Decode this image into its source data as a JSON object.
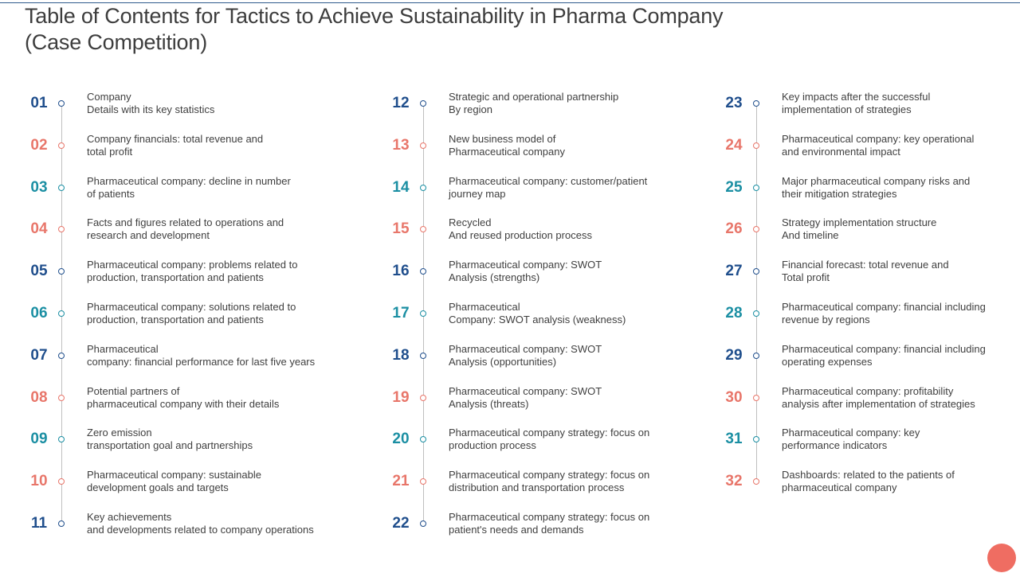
{
  "title_line1": "Table of Contents for Tactics to Achieve Sustainability in Pharma Company",
  "title_line2": "(Case Competition)",
  "colors": {
    "navy": "#1f4e8c",
    "salmon": "#e8766a",
    "teal": "#1b8fa3",
    "accent_circle": "#ef6d62",
    "top_rule": "#2e5a8c"
  },
  "columns": [
    {
      "items": [
        {
          "num": "01",
          "color": "navy",
          "line1": "Company",
          "line2": "Details with its key statistics"
        },
        {
          "num": "02",
          "color": "salmon",
          "line1": "Company financials: total revenue  and",
          "line2": "total profit"
        },
        {
          "num": "03",
          "color": "teal",
          "line1": "Pharmaceutical company: decline in number",
          "line2": "of patients"
        },
        {
          "num": "04",
          "color": "salmon",
          "line1": "Facts and figures related to operations and",
          "line2": "research and development"
        },
        {
          "num": "05",
          "color": "navy",
          "line1": "Pharmaceutical company: problems related to",
          "line2": "production, transportation and patients"
        },
        {
          "num": "06",
          "color": "teal",
          "line1": "Pharmaceutical company: solutions related to",
          "line2": "production, transportation and patients"
        },
        {
          "num": "07",
          "color": "navy",
          "line1": "Pharmaceutical",
          "line2": "company: financial performance  for last five  years"
        },
        {
          "num": "08",
          "color": "salmon",
          "line1": "Potential partners of",
          "line2": "pharmaceutical company with their details"
        },
        {
          "num": "09",
          "color": "teal",
          "line1": "Zero emission",
          "line2": "transportation goal and partnerships"
        },
        {
          "num": "10",
          "color": "salmon",
          "line1": "Pharmaceutical company: sustainable",
          "line2": "development  goals and targets"
        },
        {
          "num": "11",
          "color": "navy",
          "line1": "Key achievements",
          "line2": "and developments  related to company operations"
        }
      ]
    },
    {
      "items": [
        {
          "num": "12",
          "color": "navy",
          "line1": "Strategic and operational partnership",
          "line2": "By region"
        },
        {
          "num": "13",
          "color": "salmon",
          "line1": "New business model of",
          "line2": "Pharmaceutical company"
        },
        {
          "num": "14",
          "color": "teal",
          "line1": "Pharmaceutical company: customer/patient",
          "line2": "journey map"
        },
        {
          "num": "15",
          "color": "salmon",
          "line1": "Recycled",
          "line2": "And reused production process"
        },
        {
          "num": "16",
          "color": "navy",
          "line1": "Pharmaceutical company: SWOT",
          "line2": "Analysis (strengths)"
        },
        {
          "num": "17",
          "color": "teal",
          "line1": "Pharmaceutical",
          "line2": "Company: SWOT analysis (weakness)"
        },
        {
          "num": "18",
          "color": "navy",
          "line1": "Pharmaceutical company: SWOT",
          "line2": "Analysis (opportunities)"
        },
        {
          "num": "19",
          "color": "salmon",
          "line1": "Pharmaceutical company: SWOT",
          "line2": "Analysis (threats)"
        },
        {
          "num": "20",
          "color": "teal",
          "line1": "Pharmaceutical company strategy: focus on",
          "line2": "production process"
        },
        {
          "num": "21",
          "color": "salmon",
          "line1": "Pharmaceutical company strategy: focus on",
          "line2": "distribution and transportation process"
        },
        {
          "num": "22",
          "color": "navy",
          "line1": "Pharmaceutical company strategy: focus on",
          "line2": "patient's needs and demands"
        }
      ]
    },
    {
      "items": [
        {
          "num": "23",
          "color": "navy",
          "line1": "Key impacts after the successful",
          "line2": "implementation  of strategies"
        },
        {
          "num": "24",
          "color": "salmon",
          "line1": "Pharmaceutical company: key operational",
          "line2": "and environmental  impact"
        },
        {
          "num": "25",
          "color": "teal",
          "line1": "Major pharmaceutical company risks and",
          "line2": "their mitigation strategies"
        },
        {
          "num": "26",
          "color": "salmon",
          "line1": "Strategy implementation structure",
          "line2": "And timeline"
        },
        {
          "num": "27",
          "color": "navy",
          "line1": "Financial forecast: total revenue  and",
          "line2": "Total profit"
        },
        {
          "num": "28",
          "color": "teal",
          "line1": "Pharmaceutical company: financial including",
          "line2": "revenue  by regions"
        },
        {
          "num": "29",
          "color": "navy",
          "line1": "Pharmaceutical company: financial including",
          "line2": "operating expenses"
        },
        {
          "num": "30",
          "color": "salmon",
          "line1": "Pharmaceutical company: profitability",
          "line2": "analysis after implementation of strategies"
        },
        {
          "num": "31",
          "color": "teal",
          "line1": "Pharmaceutical company: key",
          "line2": "performance  indicators"
        },
        {
          "num": "32",
          "color": "salmon",
          "line1": "Dashboards:  related to the patients of",
          "line2": "pharmaceutical company"
        }
      ]
    }
  ]
}
